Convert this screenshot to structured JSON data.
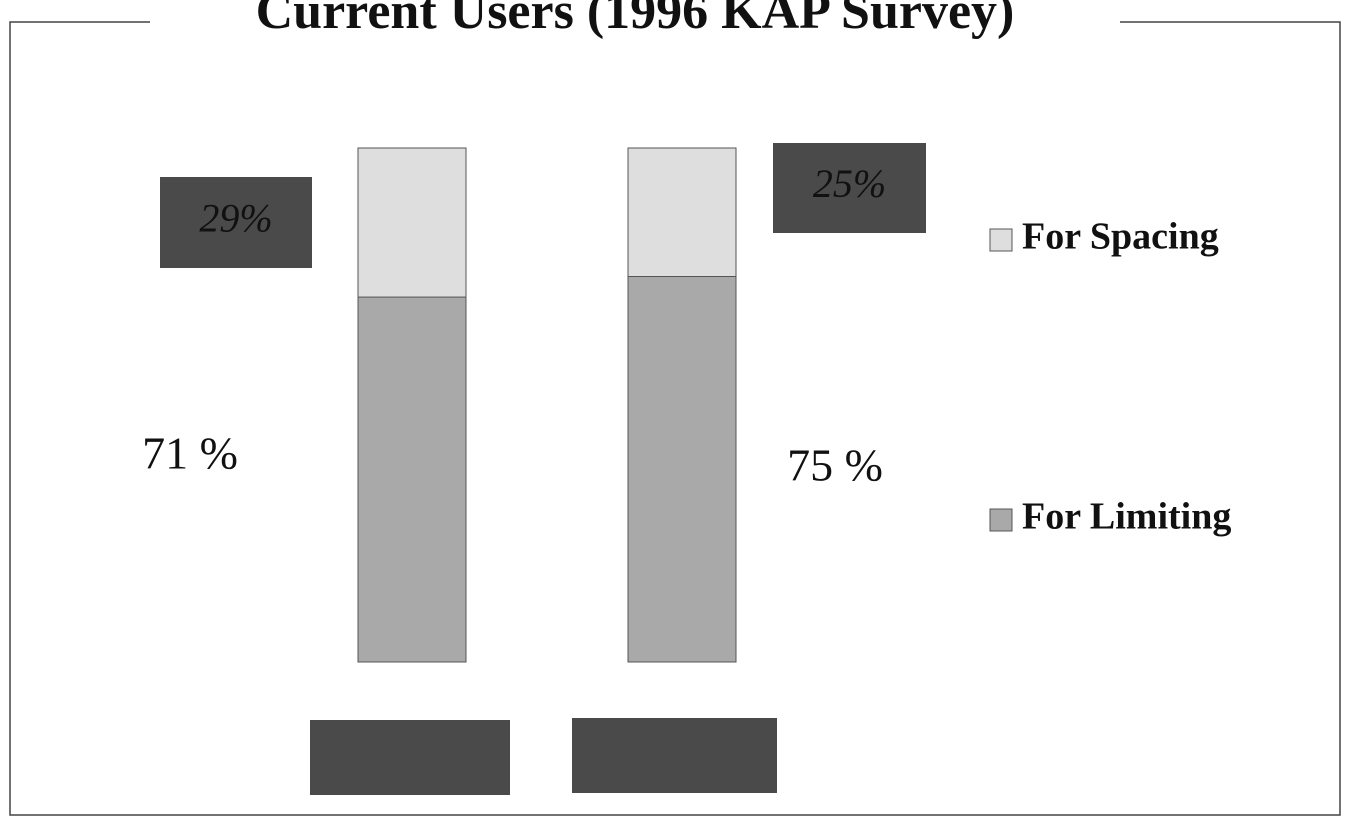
{
  "chart_data": {
    "type": "stacked_bar",
    "title": "Current Users (1996 KAP Survey)",
    "categories": [
      null,
      null
    ],
    "series": [
      {
        "name": "For Limiting",
        "color": "#a9a9a9",
        "values": [
          71,
          75
        ],
        "value_labels": [
          "71 %",
          "75 %"
        ]
      },
      {
        "name": "For Spacing",
        "color": "#dedede",
        "values": [
          29,
          25
        ],
        "value_labels": [
          "29%",
          "25%"
        ]
      }
    ],
    "ylim": [
      0,
      100
    ]
  }
}
